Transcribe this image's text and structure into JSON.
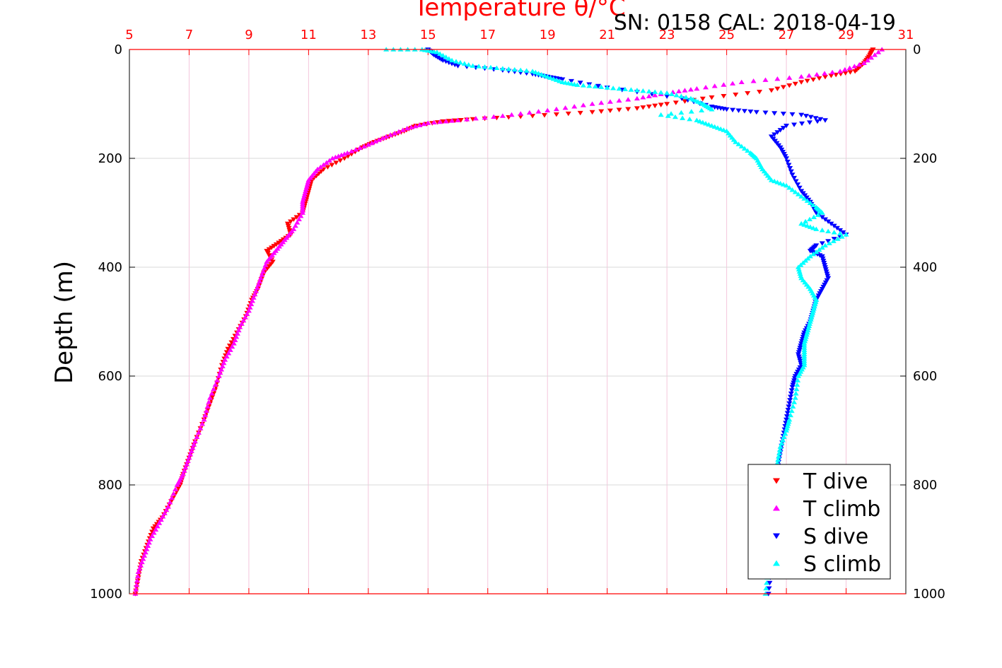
{
  "chart_data": {
    "type": "scatter",
    "title": "Temperature θ/°C",
    "subtitle": "SN: 0158  CAL: 2018-04-19",
    "ylabel": "Depth (m)",
    "xlim": [
      5,
      31
    ],
    "ylim": [
      0,
      1000
    ],
    "y_reversed": true,
    "x_ticks": [
      "5",
      "7",
      "9",
      "11",
      "13",
      "15",
      "17",
      "19",
      "21",
      "23",
      "25",
      "27",
      "29",
      "31"
    ],
    "y_ticks": [
      "0",
      "200",
      "400",
      "600",
      "800",
      "1000"
    ],
    "grid": true,
    "legend_position": "bottom-right",
    "colors": {
      "axis": "#ff0000",
      "grid": "#d9d9d9",
      "vgrid": "#f4c6dc"
    },
    "series": [
      {
        "name": "T dive",
        "marker": "triangle-down",
        "color": "#ff0000",
        "points": [
          [
            29.9,
            0
          ],
          [
            29.8,
            10
          ],
          [
            29.6,
            25
          ],
          [
            29.3,
            40
          ],
          [
            28.5,
            48
          ],
          [
            27.5,
            60
          ],
          [
            26.5,
            75
          ],
          [
            24.5,
            88
          ],
          [
            23.0,
            100
          ],
          [
            22.0,
            108
          ],
          [
            20.5,
            115
          ],
          [
            18.5,
            122
          ],
          [
            16.5,
            128
          ],
          [
            15.5,
            132
          ],
          [
            14.6,
            140
          ],
          [
            14.2,
            150
          ],
          [
            13.7,
            160
          ],
          [
            13.2,
            170
          ],
          [
            12.8,
            180
          ],
          [
            12.2,
            200
          ],
          [
            11.5,
            220
          ],
          [
            11.1,
            240
          ],
          [
            11.0,
            260
          ],
          [
            10.9,
            280
          ],
          [
            10.8,
            300
          ],
          [
            10.3,
            320
          ],
          [
            10.4,
            340
          ],
          [
            10.0,
            355
          ],
          [
            9.6,
            370
          ],
          [
            9.8,
            390
          ],
          [
            9.5,
            410
          ],
          [
            9.3,
            440
          ],
          [
            9.1,
            460
          ],
          [
            8.9,
            490
          ],
          [
            8.6,
            520
          ],
          [
            8.3,
            550
          ],
          [
            8.1,
            580
          ],
          [
            7.9,
            620
          ],
          [
            7.7,
            650
          ],
          [
            7.5,
            680
          ],
          [
            7.2,
            720
          ],
          [
            7.0,
            750
          ],
          [
            6.8,
            780
          ],
          [
            6.7,
            800
          ],
          [
            6.4,
            830
          ],
          [
            6.1,
            860
          ],
          [
            5.8,
            880
          ],
          [
            5.6,
            910
          ],
          [
            5.4,
            940
          ],
          [
            5.3,
            970
          ],
          [
            5.2,
            1000
          ]
        ]
      },
      {
        "name": "T climb",
        "marker": "triangle-up",
        "color": "#ff00ff",
        "points": [
          [
            30.2,
            0
          ],
          [
            29.6,
            25
          ],
          [
            28.8,
            40
          ],
          [
            27.5,
            50
          ],
          [
            25.5,
            60
          ],
          [
            24.0,
            72
          ],
          [
            23.0,
            80
          ],
          [
            22.0,
            90
          ],
          [
            20.5,
            100
          ],
          [
            19.0,
            112
          ],
          [
            17.5,
            122
          ],
          [
            16.0,
            130
          ],
          [
            15.0,
            135
          ],
          [
            14.3,
            145
          ],
          [
            13.6,
            160
          ],
          [
            13.0,
            175
          ],
          [
            12.3,
            190
          ],
          [
            11.8,
            200
          ],
          [
            11.3,
            220
          ],
          [
            11.0,
            240
          ],
          [
            10.9,
            260
          ],
          [
            10.8,
            280
          ],
          [
            10.8,
            300
          ],
          [
            10.5,
            330
          ],
          [
            10.2,
            350
          ],
          [
            9.9,
            370
          ],
          [
            9.6,
            390
          ],
          [
            9.4,
            420
          ],
          [
            9.2,
            450
          ],
          [
            9.0,
            480
          ],
          [
            8.7,
            510
          ],
          [
            8.5,
            540
          ],
          [
            8.2,
            570
          ],
          [
            8.0,
            600
          ],
          [
            7.7,
            640
          ],
          [
            7.5,
            680
          ],
          [
            7.2,
            720
          ],
          [
            7.0,
            750
          ],
          [
            6.8,
            780
          ],
          [
            6.6,
            800
          ],
          [
            6.3,
            840
          ],
          [
            6.0,
            870
          ],
          [
            5.7,
            900
          ],
          [
            5.5,
            930
          ],
          [
            5.3,
            960
          ],
          [
            5.2,
            1000
          ]
        ]
      },
      {
        "name": "S dive",
        "marker": "triangle-down",
        "color": "#0000ff",
        "points": [
          [
            15.0,
            0
          ],
          [
            15.2,
            10
          ],
          [
            15.5,
            20
          ],
          [
            16.0,
            30
          ],
          [
            17.5,
            38
          ],
          [
            18.5,
            45
          ],
          [
            19.0,
            50
          ],
          [
            19.5,
            55
          ],
          [
            21.0,
            70
          ],
          [
            23.5,
            90
          ],
          [
            24.5,
            105
          ],
          [
            25.0,
            110
          ],
          [
            26.0,
            115
          ],
          [
            27.5,
            120
          ],
          [
            28.3,
            130
          ],
          [
            27.0,
            140
          ],
          [
            26.5,
            160
          ],
          [
            26.8,
            180
          ],
          [
            27.0,
            200
          ],
          [
            27.2,
            230
          ],
          [
            27.5,
            260
          ],
          [
            27.8,
            280
          ],
          [
            28.0,
            300
          ],
          [
            28.5,
            320
          ],
          [
            29.0,
            340
          ],
          [
            28.0,
            360
          ],
          [
            27.8,
            370
          ],
          [
            28.2,
            380
          ],
          [
            28.3,
            400
          ],
          [
            28.4,
            420
          ],
          [
            28.2,
            440
          ],
          [
            28.0,
            460
          ],
          [
            27.9,
            480
          ],
          [
            27.8,
            500
          ],
          [
            27.6,
            520
          ],
          [
            27.5,
            540
          ],
          [
            27.4,
            560
          ],
          [
            27.5,
            580
          ],
          [
            27.3,
            600
          ],
          [
            27.2,
            620
          ],
          [
            27.1,
            650
          ],
          [
            27.0,
            680
          ],
          [
            26.9,
            710
          ],
          [
            26.8,
            740
          ],
          [
            26.7,
            770
          ],
          [
            26.6,
            800
          ],
          [
            26.6,
            850
          ],
          [
            26.5,
            900
          ],
          [
            26.5,
            950
          ],
          [
            26.4,
            1000
          ]
        ]
      },
      {
        "name": "S climb",
        "marker": "triangle-up",
        "color": "#00ffff",
        "points": [
          [
            13.6,
            0
          ],
          [
            14.8,
            0
          ],
          [
            15.3,
            5
          ],
          [
            15.8,
            20
          ],
          [
            16.5,
            30
          ],
          [
            17.5,
            35
          ],
          [
            18.5,
            40
          ],
          [
            19.0,
            50
          ],
          [
            19.5,
            60
          ],
          [
            20.0,
            65
          ],
          [
            21.0,
            70
          ],
          [
            22.0,
            75
          ],
          [
            23.0,
            80
          ],
          [
            23.8,
            90
          ],
          [
            24.2,
            100
          ],
          [
            24.5,
            110
          ],
          [
            22.8,
            120
          ],
          [
            24.0,
            130
          ],
          [
            24.5,
            140
          ],
          [
            25.0,
            150
          ],
          [
            25.3,
            170
          ],
          [
            25.8,
            190
          ],
          [
            26.0,
            200
          ],
          [
            26.2,
            220
          ],
          [
            26.5,
            240
          ],
          [
            27.0,
            250
          ],
          [
            27.5,
            270
          ],
          [
            28.0,
            290
          ],
          [
            28.2,
            300
          ],
          [
            27.5,
            320
          ],
          [
            28.0,
            330
          ],
          [
            29.0,
            340
          ],
          [
            28.3,
            360
          ],
          [
            27.8,
            380
          ],
          [
            27.4,
            400
          ],
          [
            27.5,
            420
          ],
          [
            27.8,
            440
          ],
          [
            28.0,
            460
          ],
          [
            27.9,
            480
          ],
          [
            27.8,
            500
          ],
          [
            27.7,
            520
          ],
          [
            27.6,
            540
          ],
          [
            27.6,
            560
          ],
          [
            27.6,
            580
          ],
          [
            27.4,
            600
          ],
          [
            27.3,
            640
          ],
          [
            27.1,
            680
          ],
          [
            27.0,
            700
          ],
          [
            26.8,
            730
          ],
          [
            26.7,
            760
          ],
          [
            26.6,
            800
          ],
          [
            26.5,
            850
          ],
          [
            26.5,
            900
          ],
          [
            26.4,
            950
          ],
          [
            26.3,
            1000
          ]
        ]
      }
    ]
  }
}
